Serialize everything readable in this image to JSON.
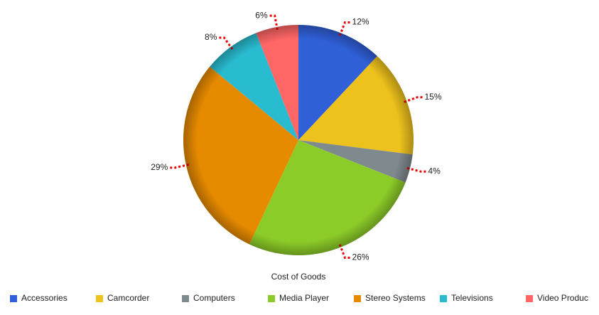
{
  "chart_data": {
    "type": "pie",
    "title": "Cost of Goods",
    "categories": [
      "Accessories",
      "Camcorder",
      "Computers",
      "Media Player",
      "Stereo Systems",
      "Televisions",
      "Video Produc"
    ],
    "values": [
      12,
      15,
      4,
      26,
      29,
      8,
      6
    ],
    "value_labels": [
      "12%",
      "15%",
      "4%",
      "26%",
      "29%",
      "8%",
      "6%"
    ],
    "colors": [
      "#3060d8",
      "#eec21c",
      "#7f8a8f",
      "#8ccc28",
      "#e68a00",
      "#29bcd0",
      "#ff6666"
    ],
    "legend": "bottom"
  }
}
